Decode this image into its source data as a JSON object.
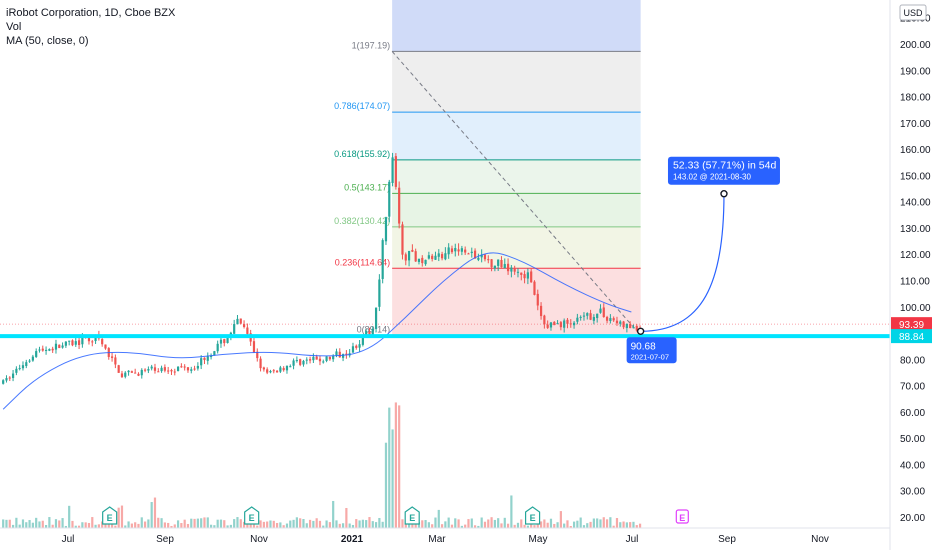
{
  "header": {
    "symbol": "iRobot Corporation, 1D, Cboe BZX",
    "volume": "Vol",
    "ma": "MA (50, close, 0)"
  },
  "currency": "USD",
  "chart_data": {
    "type": "candlestick",
    "title": "iRobot Corporation, 1D, Cboe BZX",
    "y_axis": {
      "ticks": [
        20,
        30,
        40,
        50,
        60,
        70,
        80,
        90,
        100,
        110,
        120,
        130,
        140,
        150,
        160,
        170,
        180,
        190,
        200,
        210
      ],
      "range": [
        17,
        215
      ],
      "side": "right"
    },
    "x_axis": {
      "ticks": [
        "Jul",
        "Sep",
        "Nov",
        "2021",
        "Mar",
        "May",
        "Jul",
        "Sep",
        "Nov"
      ]
    },
    "price_path": [
      {
        "date": "2020-05-20",
        "price": 71
      },
      {
        "date": "2020-06-10",
        "price": 83
      },
      {
        "date": "2020-06-25",
        "price": 85
      },
      {
        "date": "2020-07-20",
        "price": 88
      },
      {
        "date": "2020-08-05",
        "price": 74
      },
      {
        "date": "2020-08-25",
        "price": 76
      },
      {
        "date": "2020-09-20",
        "price": 77
      },
      {
        "date": "2020-10-10",
        "price": 87
      },
      {
        "date": "2020-10-20",
        "price": 95
      },
      {
        "date": "2020-10-28",
        "price": 85
      },
      {
        "date": "2020-11-06",
        "price": 74
      },
      {
        "date": "2020-11-25",
        "price": 79
      },
      {
        "date": "2020-12-15",
        "price": 80
      },
      {
        "date": "2021-01-01",
        "price": 84
      },
      {
        "date": "2021-01-15",
        "price": 92
      },
      {
        "date": "2021-01-22",
        "price": 130
      },
      {
        "date": "2021-01-27",
        "price": 160
      },
      {
        "date": "2021-02-02",
        "price": 120
      },
      {
        "date": "2021-02-20",
        "price": 118
      },
      {
        "date": "2021-03-10",
        "price": 122
      },
      {
        "date": "2021-03-25",
        "price": 118
      },
      {
        "date": "2021-04-10",
        "price": 116
      },
      {
        "date": "2021-04-25",
        "price": 112
      },
      {
        "date": "2021-05-05",
        "price": 93
      },
      {
        "date": "2021-05-25",
        "price": 94
      },
      {
        "date": "2021-06-10",
        "price": 98
      },
      {
        "date": "2021-06-25",
        "price": 93
      },
      {
        "date": "2021-07-07",
        "price": 90.68
      }
    ],
    "moving_average": {
      "name": "MA (50, close, 0)",
      "points": [
        {
          "date": "2020-05-20",
          "value": 61
        },
        {
          "date": "2020-06-10",
          "value": 73
        },
        {
          "date": "2020-07-10",
          "value": 82
        },
        {
          "date": "2020-08-10",
          "value": 83
        },
        {
          "date": "2020-09-10",
          "value": 80
        },
        {
          "date": "2020-10-10",
          "value": 82
        },
        {
          "date": "2020-11-10",
          "value": 83
        },
        {
          "date": "2020-12-10",
          "value": 81
        },
        {
          "date": "2021-01-10",
          "value": 82
        },
        {
          "date": "2021-02-05",
          "value": 96
        },
        {
          "date": "2021-03-01",
          "value": 110
        },
        {
          "date": "2021-03-28",
          "value": 122
        },
        {
          "date": "2021-04-20",
          "value": 118
        },
        {
          "date": "2021-05-20",
          "value": 108
        },
        {
          "date": "2021-06-15",
          "value": 101
        },
        {
          "date": "2021-07-01",
          "value": 98
        }
      ]
    },
    "fibonacci": {
      "levels": [
        {
          "ratio": "1",
          "price": 197.19,
          "label": "1(197.19)",
          "color": "#787b86",
          "fill": "#ebebeb"
        },
        {
          "ratio": "0.786",
          "price": 174.07,
          "label": "0.786(174.07)",
          "color": "#2196f3",
          "fill": "#dcecfb"
        },
        {
          "ratio": "0.618",
          "price": 155.92,
          "label": "0.618(155.92)",
          "color": "#089981",
          "fill": "#e8f3e8"
        },
        {
          "ratio": "0.5",
          "price": 143.17,
          "label": "0.5(143.17)",
          "color": "#4caf50",
          "fill": "#e3f2e1"
        },
        {
          "ratio": "0.382",
          "price": 130.42,
          "label": "0.382(130.42)",
          "color": "#81c784",
          "fill": "#f0f3e0"
        },
        {
          "ratio": "0.236",
          "price": 114.64,
          "label": "0.236(114.64)",
          "color": "#f23645",
          "fill": "#fcd9da"
        },
        {
          "ratio": "0",
          "price": 89.14,
          "label": "0(89.14)",
          "color": "#787b86",
          "fill": ""
        }
      ],
      "start_date": "2021-01-27",
      "end_date": "2021-07-07"
    },
    "support_line": {
      "price": 88.84,
      "color": "#00e5ff"
    },
    "projection": {
      "start": {
        "date": "2021-07-07",
        "price": 90.68
      },
      "end": {
        "date": "2021-08-30",
        "price": 143.02
      },
      "label_main": "52.33 (57.71%) in 54d",
      "label_sub": "143.02 @ 2021-08-30"
    },
    "start_tag": {
      "price": "90.68",
      "date": "2021-07-07"
    },
    "price_tags": [
      {
        "value": "93.39",
        "price": 93.39,
        "color": "#f23645"
      },
      {
        "value": "88.84",
        "price": 88.84,
        "color": "#00d4e6"
      }
    ],
    "earnings_markers": [
      {
        "date": "2020-07-28",
        "label": "E",
        "upcoming": false
      },
      {
        "date": "2020-10-28",
        "label": "E",
        "upcoming": false
      },
      {
        "date": "2021-02-09",
        "label": "E",
        "upcoming": false
      },
      {
        "date": "2021-04-28",
        "label": "E",
        "upcoming": false
      },
      {
        "date": "2021-08-03",
        "label": "E",
        "upcoming": true
      }
    ],
    "colors": {
      "up": "#26a69a",
      "down": "#ef5350",
      "ma": "#2962ff",
      "projection": "#2962ff",
      "fib_zone": "#b7c7f5"
    }
  }
}
